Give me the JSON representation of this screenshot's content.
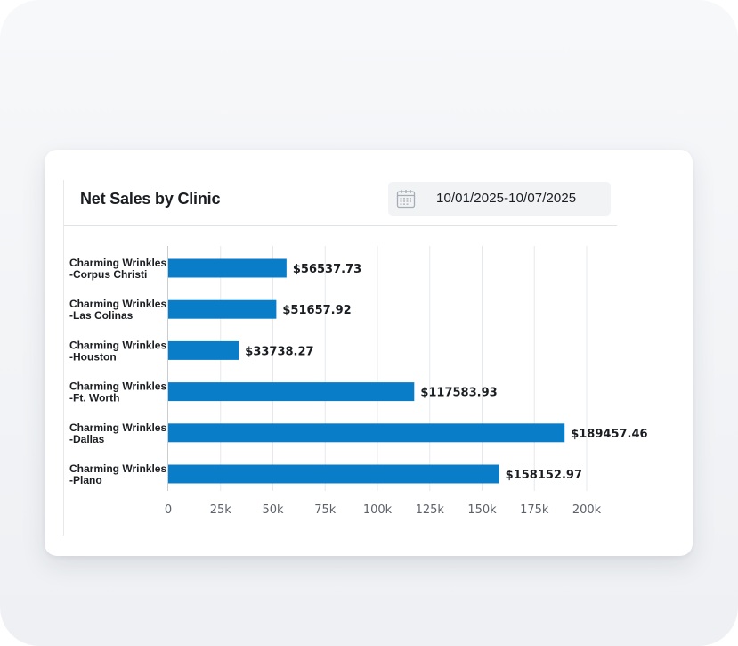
{
  "header": {
    "title": "Net Sales by Clinic",
    "date_range": "10/01/2025-10/07/2025",
    "date_icon": "calendar-icon"
  },
  "colors": {
    "bar": "#0a7dc8",
    "grid": "#e6e8eb",
    "axis": "#c9cdd2"
  },
  "chart_data": {
    "type": "bar",
    "orientation": "horizontal",
    "title": "Net Sales by Clinic",
    "categories": [
      [
        "Charming Wrinkles",
        "-Corpus Christi"
      ],
      [
        "Charming Wrinkles",
        "-Las Colinas"
      ],
      [
        "Charming Wrinkles",
        "-Houston"
      ],
      [
        "Charming Wrinkles",
        "-Ft. Worth"
      ],
      [
        "Charming Wrinkles",
        "-Dallas"
      ],
      [
        "Charming Wrinkles",
        "-Plano"
      ]
    ],
    "values": [
      56537.73,
      51657.92,
      33738.27,
      117583.93,
      189457.46,
      158152.97
    ],
    "value_labels": [
      "$56537.73",
      "$51657.92",
      "$33738.27",
      "$117583.93",
      "$189457.46",
      "$158152.97"
    ],
    "xlim": [
      0,
      200000
    ],
    "xticks": [
      0,
      25000,
      50000,
      75000,
      100000,
      125000,
      150000,
      175000,
      200000
    ],
    "xtick_labels": [
      "0",
      "25k",
      "50k",
      "75k",
      "100k",
      "125k",
      "150k",
      "175k",
      "200k"
    ],
    "xlabel": "",
    "ylabel": "",
    "grid": true,
    "legend": "none"
  }
}
